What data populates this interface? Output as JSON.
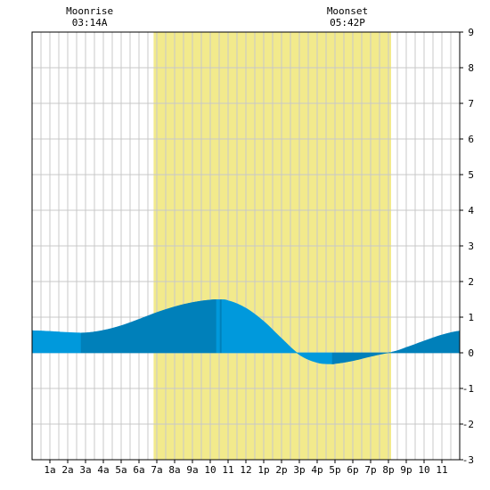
{
  "chart_data": {
    "type": "area",
    "title": "",
    "xlabel": "",
    "ylabel": "",
    "x_ticks": [
      "1a",
      "2a",
      "3a",
      "4a",
      "5a",
      "6a",
      "7a",
      "8a",
      "9a",
      "10",
      "11",
      "12",
      "1p",
      "2p",
      "3p",
      "4p",
      "5p",
      "6p",
      "7p",
      "8p",
      "9p",
      "10",
      "11"
    ],
    "x_range_hours": [
      0,
      24
    ],
    "ylim": [
      -3,
      9
    ],
    "y_ticks": [
      -3,
      -2,
      -1,
      0,
      1,
      2,
      3,
      4,
      5,
      6,
      7,
      8,
      9
    ],
    "grid": true,
    "daylight": {
      "start_hour": 6.82,
      "end_hour": 20.15,
      "color": "#f2ea8c"
    },
    "moon_events": [
      {
        "label": "Moonrise",
        "time": "03:14A",
        "hour": 3.23
      },
      {
        "label": "Moonset",
        "time": "05:42P",
        "hour": 17.7
      }
    ],
    "series": [
      {
        "x": [
          0,
          1,
          2,
          3,
          4,
          5,
          6,
          7,
          8,
          9,
          10,
          10.5,
          11,
          12,
          13,
          14,
          15,
          16,
          16.8,
          17,
          18,
          19,
          20,
          20.2,
          21,
          22,
          23,
          24
        ],
        "y": [
          0.62,
          0.6,
          0.57,
          0.56,
          0.63,
          0.76,
          0.94,
          1.13,
          1.29,
          1.41,
          1.48,
          1.49,
          1.46,
          1.25,
          0.88,
          0.4,
          -0.05,
          -0.27,
          -0.31,
          -0.3,
          -0.22,
          -0.1,
          0.0,
          0.02,
          0.15,
          0.33,
          0.5,
          0.61
        ]
      }
    ],
    "colors": {
      "fill_light": "#0099dd",
      "fill_dark": "#0080bb",
      "grid": "#c8c8c8"
    }
  }
}
